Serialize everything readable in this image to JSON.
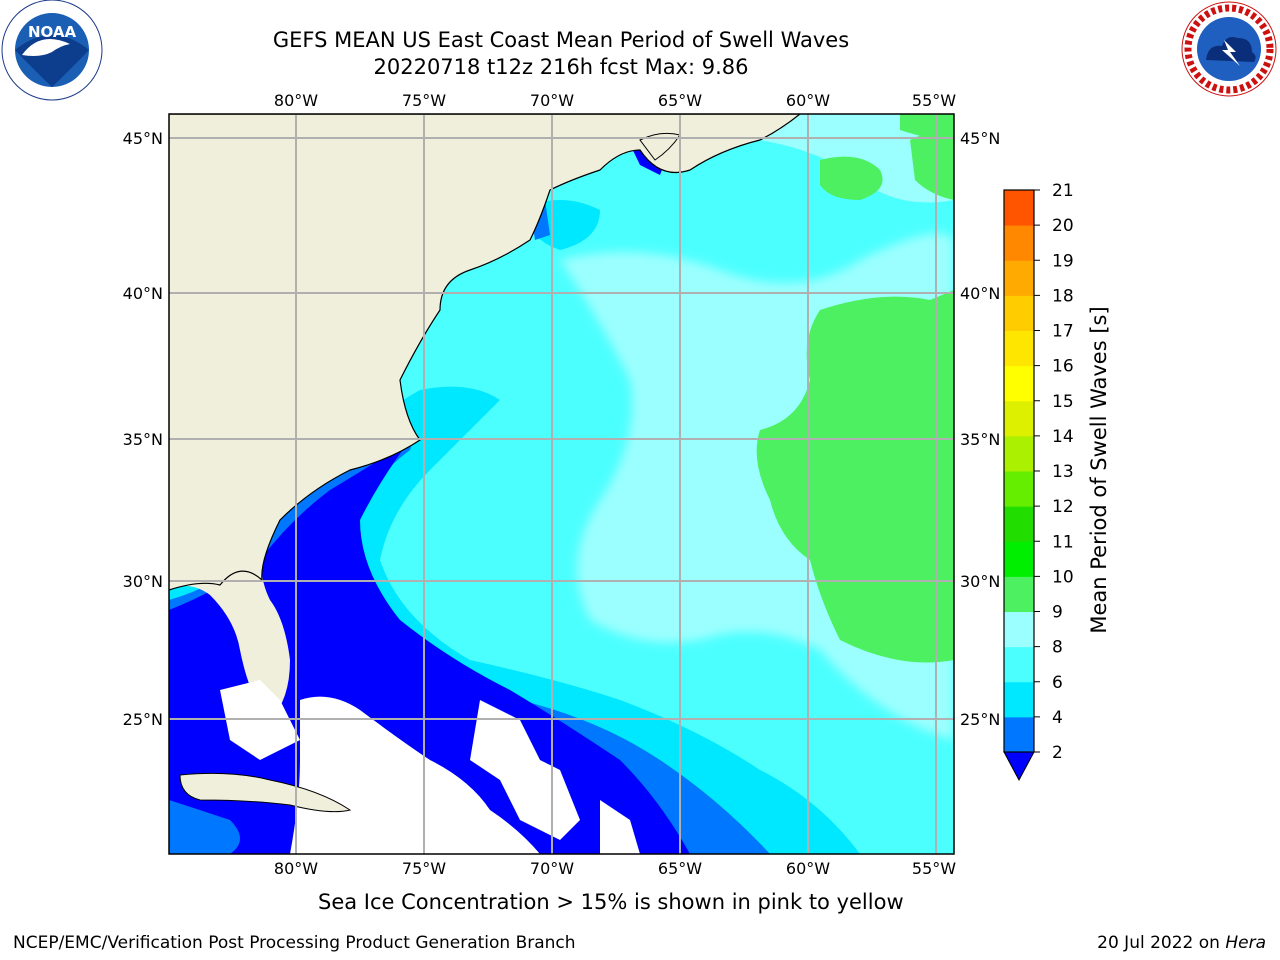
{
  "header": {
    "title_line1": "GEFS MEAN US East Coast Mean Period of Swell Waves",
    "title_line2": "20220718 t12z 216h fcst   Max: 9.86"
  },
  "logos": {
    "left": "NOAA",
    "right_ring": "NATIONAL WEATHER SERVICE"
  },
  "map": {
    "lon_labels_top": [
      "80°W",
      "75°W",
      "70°W",
      "65°W",
      "60°W",
      "55°W"
    ],
    "lon_labels_bottom": [
      "80°W",
      "75°W",
      "70°W",
      "65°W",
      "60°W",
      "55°W"
    ],
    "lat_labels_left": [
      "45°N",
      "40°N",
      "35°N",
      "30°N",
      "25°N"
    ],
    "lat_labels_right": [
      "45°N",
      "40°N",
      "35°N",
      "30°N",
      "25°N"
    ],
    "land_color": "#efefdc",
    "gridline_color": "#b0b0b0"
  },
  "colorbar": {
    "label": "Mean Period of Swell Waves [s]",
    "ticks": [
      "2",
      "4",
      "6",
      "8",
      "9",
      "10",
      "11",
      "12",
      "13",
      "14",
      "15",
      "16",
      "17",
      "18",
      "19",
      "20",
      "21"
    ],
    "colors": [
      "#0077ff",
      "#00e8ff",
      "#4cffff",
      "#9cffff",
      "#4cf060",
      "#00ee00",
      "#22dd00",
      "#66ee00",
      "#aaf000",
      "#ddf000",
      "#ffff00",
      "#ffe600",
      "#ffcc00",
      "#ffaa00",
      "#ff8800",
      "#ff5500",
      "#ff2200",
      "#ff0000"
    ],
    "under_color": "#0000ff"
  },
  "footer": {
    "note": "Sea Ice Concentration > 15% is shown in pink to yellow",
    "credit": "NCEP/EMC/Verification Post Processing Product Generation Branch",
    "date": "20 Jul 2022 on ",
    "host": "Hera"
  }
}
